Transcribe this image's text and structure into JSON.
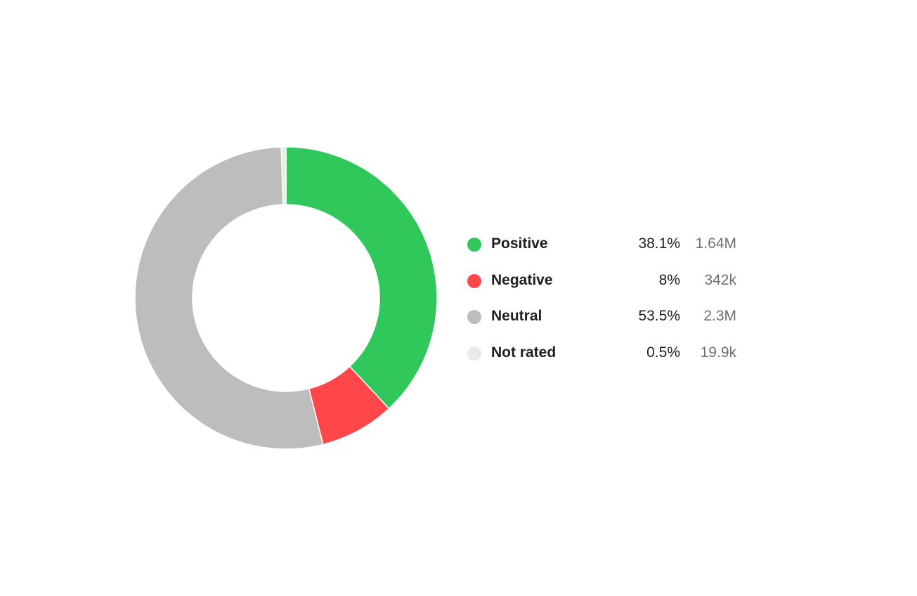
{
  "chart_data": {
    "type": "pie",
    "variant": "donut",
    "title": "",
    "start_angle": "top",
    "direction": "clockwise",
    "slices": [
      {
        "label": "Positive",
        "value": 38.1,
        "percent_label": "38.1%",
        "count_label": "1.64M",
        "color": "#30c85a"
      },
      {
        "label": "Negative",
        "value": 8,
        "percent_label": "8%",
        "count_label": "342k",
        "color": "#ff4649"
      },
      {
        "label": "Neutral",
        "value": 53.5,
        "percent_label": "53.5%",
        "count_label": "2.3M",
        "color": "#bdbdbd"
      },
      {
        "label": "Not rated",
        "value": 0.5,
        "percent_label": "0.5%",
        "count_label": "19.9k",
        "color": "#eaeaea"
      }
    ],
    "legend_position": "right"
  },
  "legend": {
    "items": [
      {
        "label": "Positive",
        "percent": "38.1%",
        "count": "1.64M"
      },
      {
        "label": "Negative",
        "percent": "8%",
        "count": "342k"
      },
      {
        "label": "Neutral",
        "percent": "53.5%",
        "count": "2.3M"
      },
      {
        "label": "Not rated",
        "percent": "0.5%",
        "count": "19.9k"
      }
    ]
  }
}
